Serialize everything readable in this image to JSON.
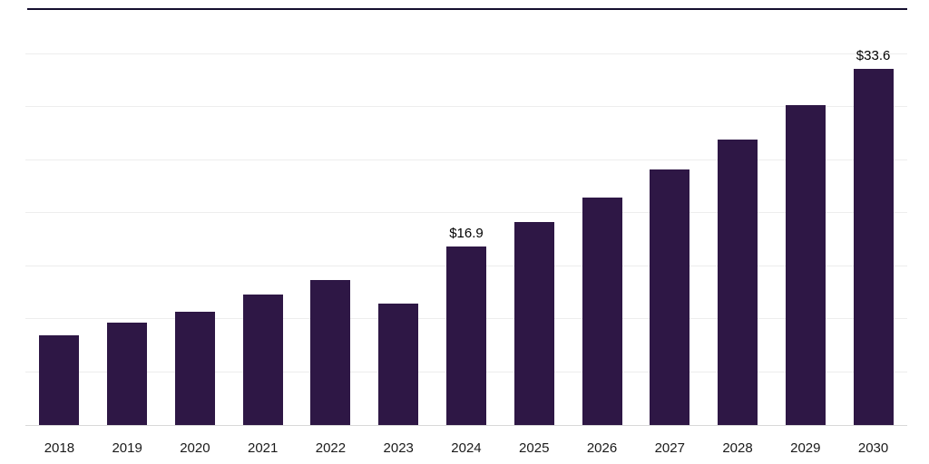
{
  "chart_data": {
    "type": "bar",
    "title": "",
    "xlabel": "",
    "ylabel": "",
    "categories": [
      "2018",
      "2019",
      "2020",
      "2021",
      "2022",
      "2023",
      "2024",
      "2025",
      "2026",
      "2027",
      "2028",
      "2029",
      "2030"
    ],
    "values": [
      8.5,
      9.7,
      10.7,
      12.3,
      13.7,
      11.5,
      16.9,
      19.2,
      21.5,
      24.1,
      27.0,
      30.2,
      33.6
    ],
    "data_labels": {
      "2024": "$16.9",
      "2030": "$33.6"
    },
    "ylim": [
      0,
      35
    ],
    "grid": "horizontal, step 5, no tick labels",
    "legend": "none",
    "bar_color": "#2e1745",
    "top_border_color": "#140e2e",
    "gridline_color": "#ededed",
    "baseline_color": "#d9d9d9"
  }
}
